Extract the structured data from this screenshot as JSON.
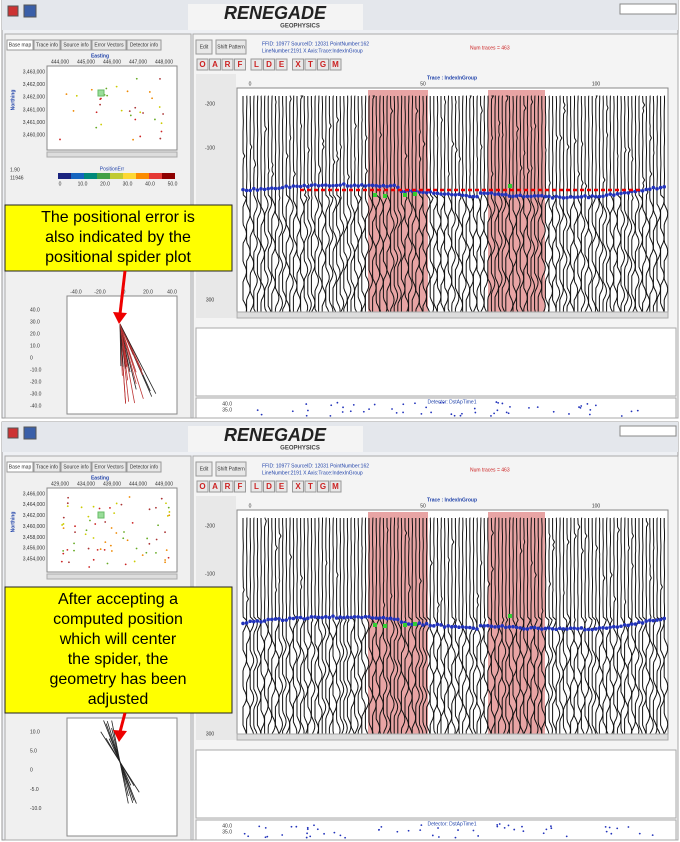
{
  "panels": [
    {
      "logo": "RENEGADE",
      "logo_sub": "GEOPHYSICS",
      "tabs": [
        "Base map",
        "Trace info",
        "Source info",
        "Error Vectors",
        "Detector info"
      ],
      "basemap": {
        "x_label": "Easting",
        "x_ticks": [
          "444,000",
          "445,000",
          "446,000",
          "447,000",
          "448,000"
        ],
        "y_label": "Northing",
        "y_ticks": [
          "3,463,000",
          "3,462,000",
          "3,462,000",
          "3,461,000",
          "3,461,000",
          "3,460,000"
        ]
      },
      "stats": [
        "1.90",
        "11946"
      ],
      "colorbar": {
        "title": "PositionErr",
        "ticks": [
          "0",
          "10.0",
          "20.0",
          "30.0",
          "40.0",
          "50.0"
        ]
      },
      "spider": {
        "x_ticks": [
          "-40.0",
          "-20.0",
          "0",
          "20.0",
          "40.0"
        ],
        "y_ticks": [
          "40.0",
          "30.0",
          "20.0",
          "10.0",
          "0",
          "-10.0",
          "-20.0",
          "-30.0",
          "-40.0"
        ]
      },
      "header": {
        "buttons": [
          "Edit",
          "Shift Pattern"
        ],
        "info": [
          "FFID: 10977 SourceID: 12031 PointNumber:162",
          "LineNumber:2191  X Axis:Trace:IndexInGroup"
        ],
        "num_traces": "Num traces = 463"
      },
      "tools": [
        "O",
        "A",
        "R",
        "F",
        "L",
        "D",
        "E",
        "X",
        "T",
        "G",
        "M"
      ],
      "trace_view": {
        "title": "Trace : IndexInGroup",
        "x_ticks": [
          "0",
          "50",
          "100"
        ],
        "y_ticks": [
          "-200",
          "-100",
          "200",
          "300"
        ]
      },
      "detector": {
        "title": "Detector: DstApTime1",
        "y_ticks": [
          "40.0",
          "35.0"
        ]
      },
      "callout": [
        "The positional error is",
        "also indicated by the",
        "positional spider plot"
      ]
    },
    {
      "logo": "RENEGADE",
      "logo_sub": "GEOPHYSICS",
      "tabs": [
        "Base map",
        "Trace info",
        "Source info",
        "Error Vectors",
        "Detector info"
      ],
      "basemap": {
        "x_label": "Easting",
        "x_ticks": [
          "429,000",
          "434,000",
          "439,000",
          "444,000",
          "449,000"
        ],
        "y_label": "Northing",
        "y_ticks": [
          "3,466,000",
          "3,464,000",
          "3,462,000",
          "3,460,000",
          "3,458,000",
          "3,456,000",
          "3,454,000"
        ]
      },
      "spider": {
        "x_ticks": [],
        "y_ticks": [
          "10.0",
          "5.0",
          "0",
          "-5.0",
          "-10.0"
        ]
      },
      "header": {
        "buttons": [
          "Edit",
          "Shift Pattern"
        ],
        "info": [
          "FFID: 10977 SourceID: 12031 PointNumber:162",
          "LineNumber:2191  X Axis:Trace:IndexInGroup"
        ],
        "num_traces": "Num traces = 463"
      },
      "tools": [
        "O",
        "A",
        "R",
        "F",
        "L",
        "D",
        "E",
        "X",
        "T",
        "G",
        "M"
      ],
      "trace_view": {
        "title": "Trace : IndexInGroup",
        "x_ticks": [
          "0",
          "50",
          "100"
        ],
        "y_ticks": [
          "-200",
          "-100",
          "300"
        ]
      },
      "detector": {
        "title": "Detector: DstApTime1",
        "y_ticks": [
          "40.0",
          "35.0"
        ]
      },
      "callout": [
        "After accepting a",
        "computed position",
        "which will center",
        "the spider, the",
        "geometry has been",
        "adjusted"
      ]
    }
  ]
}
